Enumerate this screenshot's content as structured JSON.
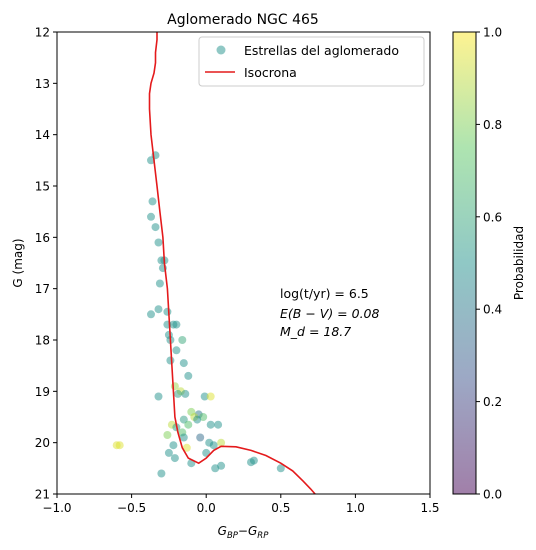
{
  "chart_data": {
    "type": "scatter",
    "title": "Aglomerado NGC 465",
    "xlabel_main": "G",
    "xlabel_sub1": "BP",
    "xlabel_minus": "−",
    "xlabel_sub2": "RP",
    "ylabel": "G (mag)",
    "xlim": [
      -1.0,
      1.5
    ],
    "ylim": [
      21,
      12
    ],
    "y_inverted": true,
    "xticks": [
      -1.0,
      -0.5,
      0.0,
      0.5,
      1.0,
      1.5
    ],
    "xtick_labels": [
      "−1.0",
      "−0.5",
      "0.0",
      "0.5",
      "1.0",
      "1.5"
    ],
    "yticks": [
      12,
      13,
      14,
      15,
      16,
      17,
      18,
      19,
      20,
      21
    ],
    "ytick_labels": [
      "12",
      "13",
      "14",
      "15",
      "16",
      "17",
      "18",
      "19",
      "20",
      "21"
    ],
    "grid": false,
    "legend_position": "top-right",
    "legend": {
      "scatter_label": "Estrellas del aglomerado",
      "line_label": "Isocrona"
    },
    "annotation": {
      "line1": "log(t/yr) = 6.5",
      "line2": "E(B − V) = 0.08",
      "line3": "M_d = 18.7"
    },
    "colorbar": {
      "label": "Probabilidad",
      "range": [
        0.0,
        1.0
      ],
      "ticks": [
        0.0,
        0.2,
        0.4,
        0.6,
        0.8,
        1.0
      ],
      "tick_labels": [
        "0.0",
        "0.2",
        "0.4",
        "0.6",
        "0.8",
        "1.0"
      ],
      "colormap": "viridis",
      "alpha": 0.5
    },
    "colormap_stops": [
      "#440154",
      "#3b528b",
      "#21918c",
      "#5ec962",
      "#fde725"
    ],
    "line_color": "#e41a1c",
    "isochrone": [
      [
        -0.33,
        12.0
      ],
      [
        -0.33,
        12.15
      ],
      [
        -0.34,
        12.4
      ],
      [
        -0.34,
        12.6
      ],
      [
        -0.35,
        12.8
      ],
      [
        -0.37,
        13.0
      ],
      [
        -0.38,
        13.2
      ],
      [
        -0.38,
        13.5
      ],
      [
        -0.37,
        14.0
      ],
      [
        -0.35,
        14.5
      ],
      [
        -0.33,
        15.0
      ],
      [
        -0.31,
        15.5
      ],
      [
        -0.29,
        16.0
      ],
      [
        -0.28,
        16.5
      ],
      [
        -0.26,
        17.0
      ],
      [
        -0.25,
        17.5
      ],
      [
        -0.24,
        18.0
      ],
      [
        -0.23,
        18.5
      ],
      [
        -0.22,
        19.0
      ],
      [
        -0.21,
        19.5
      ],
      [
        -0.19,
        19.8
      ],
      [
        -0.16,
        20.1
      ],
      [
        -0.12,
        20.3
      ],
      [
        -0.05,
        20.4
      ],
      [
        0.0,
        20.3
      ],
      [
        0.05,
        20.15
      ],
      [
        0.1,
        20.07
      ],
      [
        0.2,
        20.08
      ],
      [
        0.3,
        20.15
      ],
      [
        0.4,
        20.25
      ],
      [
        0.5,
        20.4
      ],
      [
        0.58,
        20.55
      ],
      [
        0.65,
        20.75
      ],
      [
        0.7,
        20.9
      ],
      [
        0.73,
        21.0
      ]
    ],
    "stars": [
      [
        -0.34,
        14.4,
        0.5
      ],
      [
        -0.37,
        14.5,
        0.5
      ],
      [
        -0.36,
        15.3,
        0.5
      ],
      [
        -0.37,
        15.6,
        0.5
      ],
      [
        -0.34,
        15.8,
        0.5
      ],
      [
        -0.32,
        16.1,
        0.5
      ],
      [
        -0.3,
        16.45,
        0.5
      ],
      [
        -0.28,
        16.45,
        0.5
      ],
      [
        -0.29,
        16.6,
        0.5
      ],
      [
        -0.31,
        16.9,
        0.5
      ],
      [
        -0.26,
        17.45,
        0.5
      ],
      [
        -0.32,
        17.4,
        0.5
      ],
      [
        -0.37,
        17.5,
        0.5
      ],
      [
        -0.26,
        17.7,
        0.5
      ],
      [
        -0.22,
        17.7,
        0.5
      ],
      [
        -0.2,
        17.7,
        0.5
      ],
      [
        -0.25,
        17.9,
        0.5
      ],
      [
        -0.24,
        18.0,
        0.5
      ],
      [
        -0.16,
        18.0,
        0.6
      ],
      [
        -0.2,
        18.2,
        0.5
      ],
      [
        -0.24,
        18.4,
        0.5
      ],
      [
        -0.15,
        18.45,
        0.5
      ],
      [
        -0.12,
        18.7,
        0.5
      ],
      [
        -0.21,
        18.9,
        0.85
      ],
      [
        -0.17,
        19.0,
        0.9
      ],
      [
        -0.19,
        19.05,
        0.55
      ],
      [
        -0.14,
        19.05,
        0.5
      ],
      [
        -0.32,
        19.1,
        0.5
      ],
      [
        -0.01,
        19.1,
        0.5
      ],
      [
        0.03,
        19.1,
        0.95
      ],
      [
        -0.1,
        19.4,
        0.8
      ],
      [
        -0.05,
        19.45,
        0.4
      ],
      [
        -0.02,
        19.5,
        0.7
      ],
      [
        -0.08,
        19.5,
        0.9
      ],
      [
        -0.06,
        19.55,
        0.5
      ],
      [
        -0.15,
        19.55,
        0.55
      ],
      [
        -0.12,
        19.65,
        0.7
      ],
      [
        0.03,
        19.65,
        0.5
      ],
      [
        0.08,
        19.65,
        0.5
      ],
      [
        -0.23,
        19.65,
        0.9
      ],
      [
        -0.2,
        19.7,
        0.55
      ],
      [
        -0.16,
        19.8,
        0.7
      ],
      [
        -0.26,
        19.85,
        0.8
      ],
      [
        -0.15,
        19.9,
        0.5
      ],
      [
        -0.04,
        19.9,
        0.35
      ],
      [
        0.02,
        20.0,
        0.5
      ],
      [
        0.1,
        20.0,
        0.9
      ],
      [
        0.05,
        20.05,
        0.5
      ],
      [
        -0.22,
        20.05,
        0.5
      ],
      [
        -0.13,
        20.1,
        0.95
      ],
      [
        -0.6,
        20.05,
        0.95
      ],
      [
        -0.58,
        20.05,
        0.95
      ],
      [
        0.0,
        20.2,
        0.5
      ],
      [
        -0.25,
        20.2,
        0.5
      ],
      [
        -0.21,
        20.3,
        0.5
      ],
      [
        0.32,
        20.35,
        0.5
      ],
      [
        0.3,
        20.38,
        0.5
      ],
      [
        -0.1,
        20.4,
        0.5
      ],
      [
        0.1,
        20.45,
        0.5
      ],
      [
        0.06,
        20.5,
        0.5
      ],
      [
        0.5,
        20.5,
        0.5
      ],
      [
        -0.3,
        20.6,
        0.5
      ]
    ]
  }
}
